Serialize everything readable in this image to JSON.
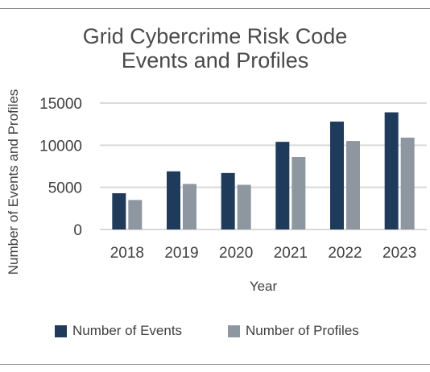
{
  "chart_data": {
    "type": "bar",
    "title_lines": [
      "Grid Cybercrime Risk Code",
      "Events and Profiles"
    ],
    "xlabel": "Year",
    "ylabel": "Number of Events and Profiles",
    "categories": [
      "2018",
      "2019",
      "2020",
      "2021",
      "2022",
      "2023"
    ],
    "series": [
      {
        "name": "Number of Events",
        "color": "#1f3b5c",
        "values": [
          4300,
          6900,
          6700,
          10400,
          12800,
          13900
        ]
      },
      {
        "name": "Number of Profiles",
        "color": "#8e979f",
        "values": [
          3500,
          5400,
          5300,
          8600,
          10500,
          10900
        ]
      }
    ],
    "ylim": [
      0,
      15000
    ],
    "yticks": [
      0,
      5000,
      10000,
      15000
    ],
    "grid": true,
    "legend_position": "bottom"
  }
}
